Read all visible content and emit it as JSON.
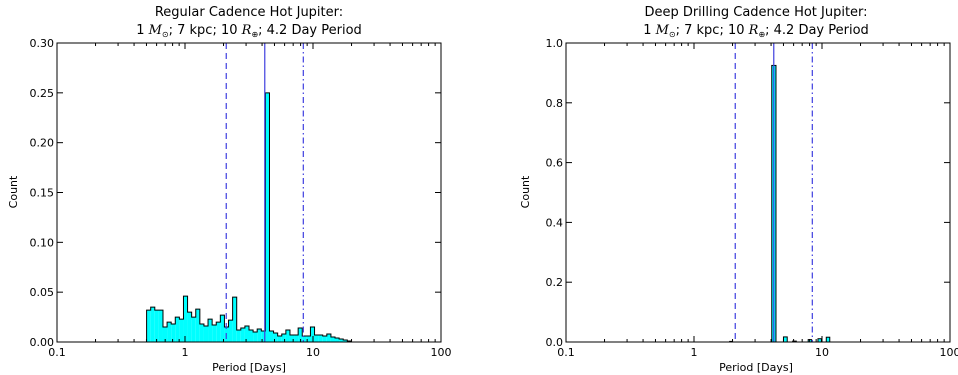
{
  "chart_data": [
    {
      "type": "histogram",
      "title_line1": "Regular Cadence Hot Jupiter:",
      "title_line2": {
        "a": "1 ",
        "m": "M",
        "msub": "⊙",
        "b": "; 7 kpc; 10 ",
        "r": "R",
        "rsub": "⊕",
        "c": "; 4.2 Day Period"
      },
      "xlabel": "Period [Days]",
      "ylabel": "Count",
      "xscale": "log",
      "xlim": [
        0.1,
        100
      ],
      "ylim": [
        0,
        0.3
      ],
      "xticks": [
        {
          "v": 0.1,
          "label": "0.1"
        },
        {
          "v": 1,
          "label": "1"
        },
        {
          "v": 10,
          "label": "10"
        },
        {
          "v": 100,
          "label": "100"
        }
      ],
      "yticks": [
        {
          "v": 0,
          "label": "0.00"
        },
        {
          "v": 0.05,
          "label": "0.05"
        },
        {
          "v": 0.1,
          "label": "0.10"
        },
        {
          "v": 0.15,
          "label": "0.15"
        },
        {
          "v": 0.2,
          "label": "0.20"
        },
        {
          "v": 0.25,
          "label": "0.25"
        },
        {
          "v": 0.3,
          "label": "0.30"
        }
      ],
      "bins_log10_range": [
        -0.3,
        1.3
      ],
      "counts": [
        0.032,
        0.035,
        0.032,
        0.032,
        0.015,
        0.02,
        0.018,
        0.025,
        0.023,
        0.046,
        0.03,
        0.025,
        0.033,
        0.018,
        0.016,
        0.023,
        0.017,
        0.02,
        0.027,
        0.015,
        0.022,
        0.045,
        0.012,
        0.014,
        0.016,
        0.012,
        0.01,
        0.013,
        0.011,
        0.25,
        0.011,
        0.009,
        0.006,
        0.008,
        0.012,
        0.007,
        0.007,
        0.014,
        0.006,
        0.006,
        0.015,
        0.007,
        0.007,
        0.006,
        0.008,
        0.005,
        0.004,
        0.003,
        0.002,
        0.001
      ],
      "fill_color": "#00ffff",
      "vlines": [
        {
          "x": 2.1,
          "style": "dashed",
          "color": "#3f3fdf"
        },
        {
          "x": 4.2,
          "style": "solid",
          "color": "#3f3fdf"
        },
        {
          "x": 8.4,
          "style": "dashdot",
          "color": "#3f3fdf"
        }
      ]
    },
    {
      "type": "histogram",
      "title_line1": "Deep Drilling Cadence Hot Jupiter:",
      "title_line2": {
        "a": "1 ",
        "m": "M",
        "msub": "⊙",
        "b": "; 7 kpc; 10 ",
        "r": "R",
        "rsub": "⊕",
        "c": "; 4.2 Day Period"
      },
      "xlabel": "Period [Days]",
      "ylabel": "Count",
      "xscale": "log",
      "xlim": [
        0.1,
        100
      ],
      "ylim": [
        0,
        1.0
      ],
      "xticks": [
        {
          "v": 0.1,
          "label": "0.1"
        },
        {
          "v": 1,
          "label": "1"
        },
        {
          "v": 10,
          "label": "10"
        },
        {
          "v": 100,
          "label": "100"
        }
      ],
      "yticks": [
        {
          "v": 0,
          "label": "0.0"
        },
        {
          "v": 0.2,
          "label": "0.2"
        },
        {
          "v": 0.4,
          "label": "0.4"
        },
        {
          "v": 0.6,
          "label": "0.6"
        },
        {
          "v": 0.8,
          "label": "0.8"
        },
        {
          "v": 1.0,
          "label": "1.0"
        }
      ],
      "bins": [
        {
          "x0": 4.05,
          "x1": 4.37,
          "y": 0.925
        },
        {
          "x0": 5.0,
          "x1": 5.35,
          "y": 0.017
        },
        {
          "x0": 7.8,
          "x1": 8.3,
          "y": 0.008
        },
        {
          "x0": 9.3,
          "x1": 9.9,
          "y": 0.011
        },
        {
          "x0": 10.8,
          "x1": 11.5,
          "y": 0.016
        },
        {
          "x0": 5.9,
          "x1": 6.3,
          "y": 0.003
        },
        {
          "x0": 1.9,
          "x1": 2.0,
          "y": 0.002
        }
      ],
      "fill_color": "#00ffff",
      "vlines": [
        {
          "x": 2.1,
          "style": "dashed",
          "color": "#3f3fdf"
        },
        {
          "x": 4.2,
          "style": "solid",
          "color": "#3f3fdf"
        },
        {
          "x": 8.4,
          "style": "dashdot",
          "color": "#3f3fdf"
        }
      ]
    }
  ]
}
